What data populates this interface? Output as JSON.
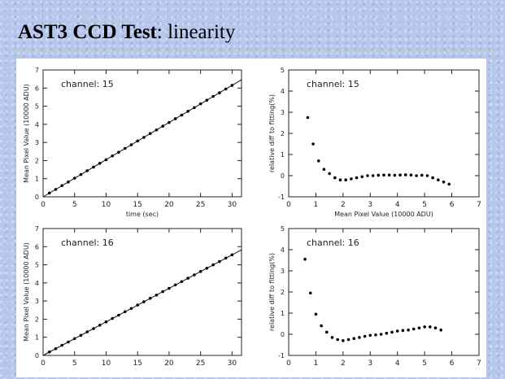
{
  "slide": {
    "title_bold": "AST3 CCD Test",
    "title_rest": ": linearity"
  },
  "chart_data": [
    {
      "type": "scatter",
      "fit_line": true,
      "annotation": "channel: 15",
      "xlabel": "time (sec)",
      "ylabel": "Mean Pixel Value (10000 ADU)",
      "xlim": [
        0,
        31.5
      ],
      "ylim": [
        0,
        7
      ],
      "xticks": [
        0,
        5,
        10,
        15,
        20,
        25,
        30
      ],
      "yticks": [
        0,
        1,
        2,
        3,
        4,
        5,
        6,
        7
      ],
      "fit": [
        0,
        0.205
      ],
      "x": [
        1,
        2,
        3,
        4,
        5,
        6,
        7,
        8,
        9,
        10,
        11,
        12,
        13,
        14,
        15,
        16,
        17,
        18,
        19,
        20,
        21,
        22,
        23,
        24,
        25,
        26,
        27,
        28,
        29,
        30
      ],
      "y": [
        0.21,
        0.41,
        0.62,
        0.82,
        1.03,
        1.23,
        1.44,
        1.64,
        1.85,
        2.05,
        2.26,
        2.46,
        2.67,
        2.87,
        3.08,
        3.28,
        3.49,
        3.69,
        3.9,
        4.1,
        4.31,
        4.51,
        4.72,
        4.92,
        5.13,
        5.33,
        5.54,
        5.74,
        5.95,
        6.15
      ]
    },
    {
      "type": "scatter",
      "annotation": "channel: 15",
      "xlabel": "Mean Pixel Value (10000 ADU)",
      "ylabel": "relative diff to fitting(%)",
      "xlim": [
        0,
        7
      ],
      "ylim": [
        -1,
        5
      ],
      "xticks": [
        0,
        1,
        2,
        3,
        4,
        5,
        6,
        7
      ],
      "yticks": [
        -1,
        0,
        1,
        2,
        3,
        4,
        5
      ],
      "x": [
        0.7,
        0.9,
        1.1,
        1.3,
        1.5,
        1.7,
        1.9,
        2.1,
        2.3,
        2.5,
        2.7,
        2.9,
        3.1,
        3.3,
        3.5,
        3.7,
        3.9,
        4.1,
        4.3,
        4.5,
        4.7,
        4.9,
        5.1,
        5.3,
        5.5,
        5.7,
        5.9
      ],
      "y": [
        2.75,
        1.5,
        0.7,
        0.3,
        0.1,
        -0.1,
        -0.2,
        -0.2,
        -0.15,
        -0.1,
        -0.05,
        0.0,
        0.0,
        0.02,
        0.03,
        0.03,
        0.02,
        0.03,
        0.04,
        0.03,
        0.0,
        0.02,
        0.0,
        -0.1,
        -0.2,
        -0.3,
        -0.4
      ]
    },
    {
      "type": "scatter",
      "fit_line": true,
      "annotation": "channel: 16",
      "xlabel": "",
      "ylabel": "Mean Pixel Value (10000 ADU)",
      "xlim": [
        0,
        31.5
      ],
      "ylim": [
        0,
        7
      ],
      "xticks": [
        0,
        5,
        10,
        15,
        20,
        25,
        30
      ],
      "yticks": [
        0,
        1,
        2,
        3,
        4,
        5,
        6,
        7
      ],
      "fit": [
        0,
        0.185
      ],
      "x": [
        1,
        2,
        3,
        4,
        5,
        6,
        7,
        8,
        9,
        10,
        11,
        12,
        13,
        14,
        15,
        16,
        17,
        18,
        19,
        20,
        21,
        22,
        23,
        24,
        25,
        26,
        27,
        28,
        29,
        30
      ],
      "y": [
        0.19,
        0.37,
        0.56,
        0.74,
        0.93,
        1.11,
        1.3,
        1.48,
        1.67,
        1.85,
        2.04,
        2.22,
        2.41,
        2.59,
        2.78,
        2.96,
        3.15,
        3.33,
        3.52,
        3.7,
        3.89,
        4.07,
        4.26,
        4.44,
        4.63,
        4.81,
        5.0,
        5.18,
        5.37,
        5.55
      ]
    },
    {
      "type": "scatter",
      "annotation": "channel: 16",
      "xlabel": "",
      "ylabel": "relative diff to fitting(%)",
      "xlim": [
        0,
        7
      ],
      "ylim": [
        -1,
        5
      ],
      "xticks": [
        0,
        1,
        2,
        3,
        4,
        5,
        6,
        7
      ],
      "yticks": [
        -1,
        0,
        1,
        2,
        3,
        4,
        5
      ],
      "x": [
        0.6,
        0.8,
        1.0,
        1.2,
        1.4,
        1.6,
        1.8,
        2.0,
        2.2,
        2.4,
        2.6,
        2.8,
        3.0,
        3.2,
        3.4,
        3.6,
        3.8,
        4.0,
        4.2,
        4.4,
        4.6,
        4.8,
        5.0,
        5.2,
        5.4,
        5.6
      ],
      "y": [
        3.55,
        1.95,
        0.95,
        0.4,
        0.1,
        -0.15,
        -0.25,
        -0.3,
        -0.25,
        -0.2,
        -0.15,
        -0.1,
        -0.05,
        -0.03,
        0.0,
        0.05,
        0.1,
        0.15,
        0.18,
        0.2,
        0.25,
        0.3,
        0.35,
        0.35,
        0.3,
        0.2
      ]
    }
  ]
}
